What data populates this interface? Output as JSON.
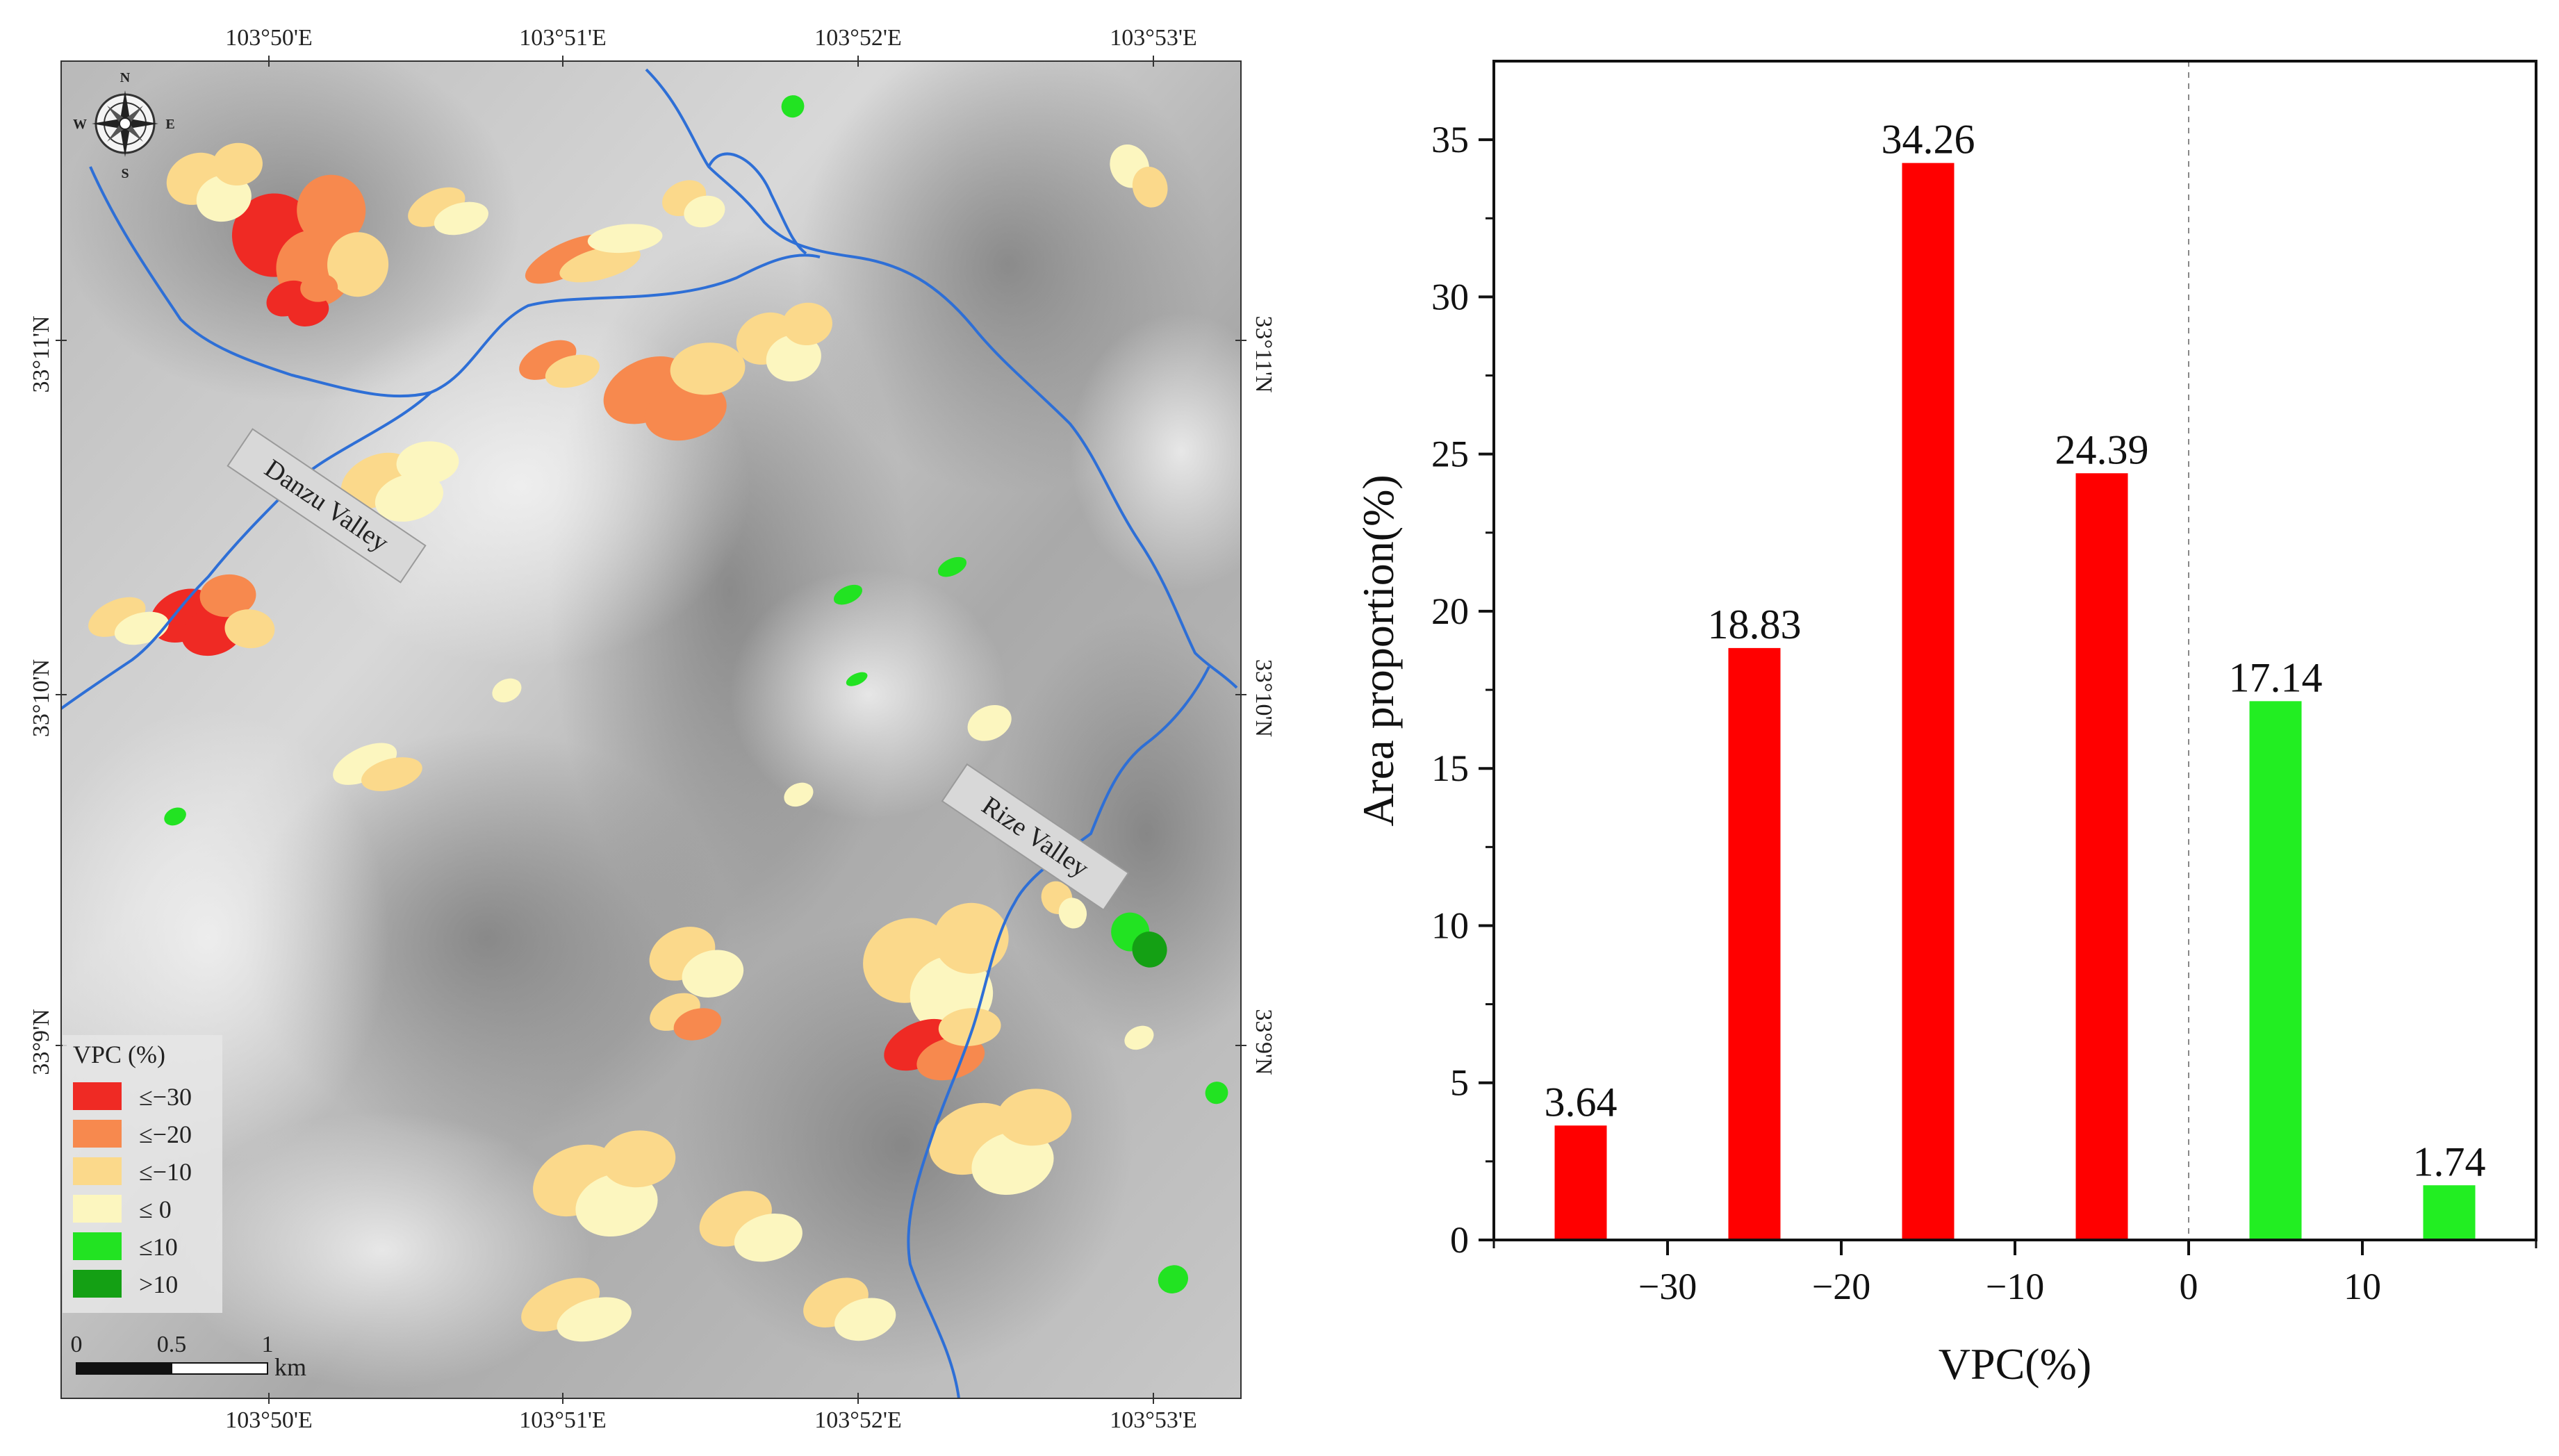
{
  "map": {
    "top_lon_labels": [
      "103°50'E",
      "103°51'E",
      "103°52'E",
      "103°53'E"
    ],
    "bottom_lon_labels": [
      "103°50'E",
      "103°51'E",
      "103°52'E",
      "103°53'E"
    ],
    "left_lat_labels": [
      "33°11'N",
      "33°10'N",
      "33°9'N"
    ],
    "right_lat_labels": [
      "33°11'N",
      "33°10'N",
      "33°9'N"
    ],
    "compass": {
      "n": "N",
      "s": "S",
      "e": "E",
      "w": "W"
    },
    "valley_labels": [
      "Danzu Valley",
      "Rize Valley"
    ],
    "legend": {
      "title": "VPC (%)",
      "items": [
        {
          "label": "≤−30",
          "color": "#ef2a24"
        },
        {
          "label": "≤−20",
          "color": "#f7894e"
        },
        {
          "label": "≤−10",
          "color": "#fbd98b"
        },
        {
          "label": "≤ 0",
          "color": "#fcf6bf"
        },
        {
          "label": "≤10",
          "color": "#22e322"
        },
        {
          "label": ">10",
          "color": "#14a014"
        }
      ]
    },
    "scale_bar": {
      "ticks": [
        "0",
        "0.5",
        "1"
      ],
      "unit": "km"
    },
    "river_color": "#2e6fd6"
  },
  "chart_data": {
    "type": "bar",
    "categories": [
      "-35",
      "-25",
      "-15",
      "-5",
      "5",
      "15"
    ],
    "x": [
      -35,
      -25,
      -15,
      -5,
      5,
      15
    ],
    "values": [
      3.64,
      18.83,
      34.26,
      24.39,
      17.14,
      1.74
    ],
    "data_labels": [
      "3.64",
      "18.83",
      "34.26",
      "24.39",
      "17.14",
      "1.74"
    ],
    "bar_colors": [
      "#ff0000",
      "#ff0000",
      "#ff0000",
      "#ff0000",
      "#22ee22",
      "#22ee22"
    ],
    "xlabel": "VPC(%)",
    "ylabel": "Area proportion(%)",
    "xlim": [
      -40,
      20
    ],
    "ylim": [
      0,
      37.5
    ],
    "x_ticks": [
      -30,
      -20,
      -10,
      0,
      10
    ],
    "x_tick_labels": [
      "−30",
      "−20",
      "−10",
      "0",
      "10"
    ],
    "y_ticks": [
      0,
      5,
      10,
      15,
      20,
      25,
      30,
      35
    ],
    "y_tick_labels": [
      "0",
      "5",
      "10",
      "15",
      "20",
      "25",
      "30",
      "35"
    ],
    "reference_line_x": 0,
    "grid": false
  }
}
